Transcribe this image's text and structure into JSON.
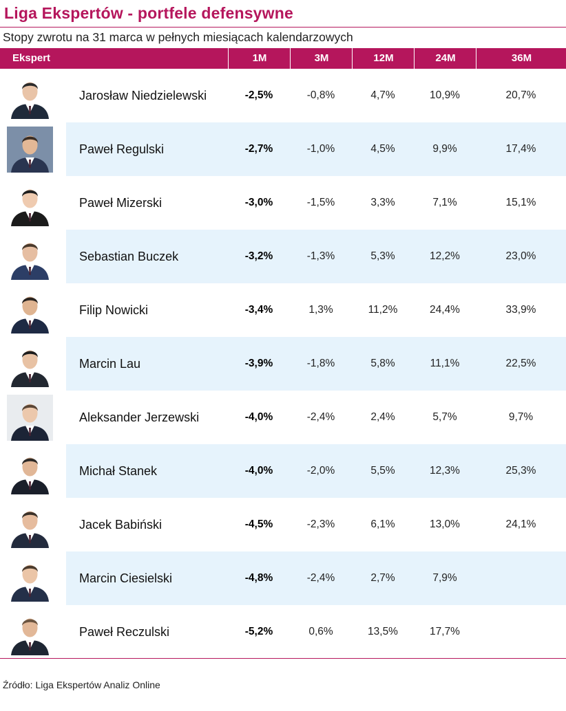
{
  "title": "Liga Ekspertów - portfele defensywne",
  "subtitle": "Stopy zwrotu na 31 marca w pełnych miesiącach kalendarzowych",
  "colors": {
    "accent": "#b5165c",
    "row_alt": "#e6f3fc"
  },
  "columns": [
    "Ekspert",
    "1M",
    "3M",
    "12M",
    "24M",
    "36M"
  ],
  "rows": [
    {
      "name": "Jarosław Niedzielewski",
      "m1": "-2,5%",
      "m3": "-0,8%",
      "m12": "4,7%",
      "m24": "10,9%",
      "m36": "20,7%",
      "photo": "portrait-icon"
    },
    {
      "name": "Paweł Regulski",
      "m1": "-2,7%",
      "m3": "-1,0%",
      "m12": "4,5%",
      "m24": "9,9%",
      "m36": "17,4%",
      "photo": "portrait-icon"
    },
    {
      "name": "Paweł Mizerski",
      "m1": "-3,0%",
      "m3": "-1,5%",
      "m12": "3,3%",
      "m24": "7,1%",
      "m36": "15,1%",
      "photo": "portrait-icon"
    },
    {
      "name": "Sebastian Buczek",
      "m1": "-3,2%",
      "m3": "-1,3%",
      "m12": "5,3%",
      "m24": "12,2%",
      "m36": "23,0%",
      "photo": "portrait-icon"
    },
    {
      "name": "Filip Nowicki",
      "m1": "-3,4%",
      "m3": "1,3%",
      "m12": "11,2%",
      "m24": "24,4%",
      "m36": "33,9%",
      "photo": "portrait-icon"
    },
    {
      "name": "Marcin Lau",
      "m1": "-3,9%",
      "m3": "-1,8%",
      "m12": "5,8%",
      "m24": "11,1%",
      "m36": "22,5%",
      "photo": "portrait-icon"
    },
    {
      "name": "Aleksander Jerzewski",
      "m1": "-4,0%",
      "m3": "-2,4%",
      "m12": "2,4%",
      "m24": "5,7%",
      "m36": "9,7%",
      "photo": "portrait-icon"
    },
    {
      "name": "Michał Stanek",
      "m1": "-4,0%",
      "m3": "-2,0%",
      "m12": "5,5%",
      "m24": "12,3%",
      "m36": "25,3%",
      "photo": "portrait-icon"
    },
    {
      "name": "Jacek Babiński",
      "m1": "-4,5%",
      "m3": "-2,3%",
      "m12": "6,1%",
      "m24": "13,0%",
      "m36": "24,1%",
      "photo": "portrait-icon"
    },
    {
      "name": "Marcin Ciesielski",
      "m1": "-4,8%",
      "m3": "-2,4%",
      "m12": "2,7%",
      "m24": "7,9%",
      "m36": "",
      "photo": "portrait-icon"
    },
    {
      "name": "Paweł Reczulski",
      "m1": "-5,2%",
      "m3": "0,6%",
      "m12": "13,5%",
      "m24": "17,7%",
      "m36": "",
      "photo": "portrait-icon"
    }
  ],
  "source": "Źródło: Liga Ekspertów Analiz Online"
}
